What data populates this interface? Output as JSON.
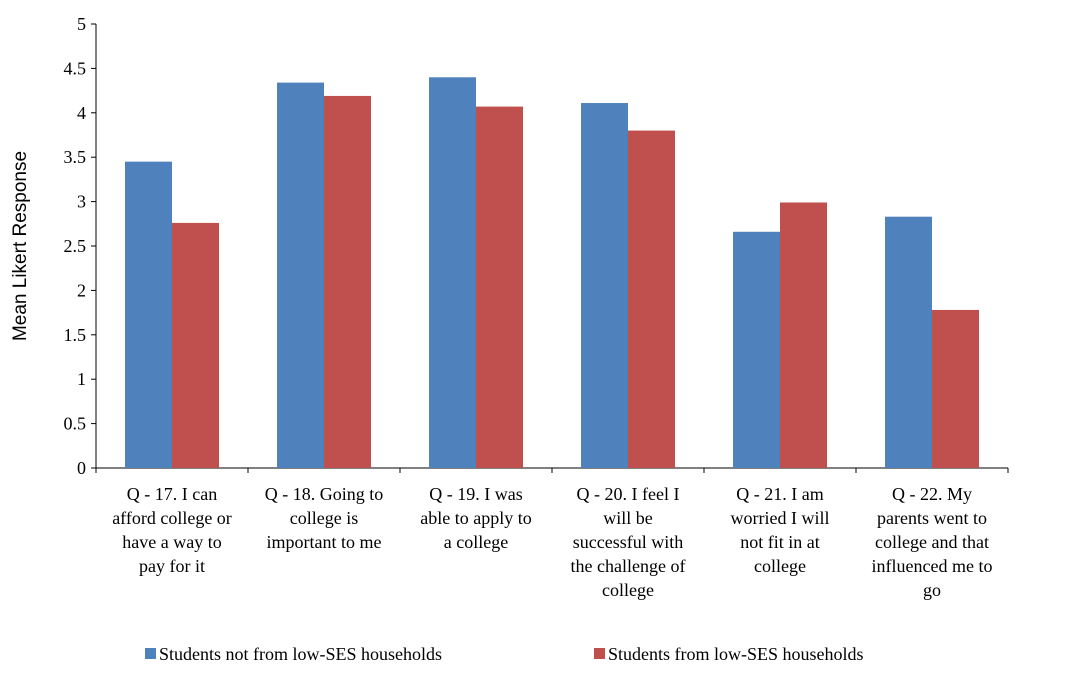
{
  "chart_data": {
    "type": "bar",
    "title": "",
    "xlabel": "",
    "ylabel": "Mean Likert Response",
    "ylim": [
      0,
      5
    ],
    "ytick_step": 0.5,
    "yticks": [
      "0",
      "0.5",
      "1",
      "1.5",
      "2",
      "2.5",
      "3",
      "3.5",
      "4",
      "4.5",
      "5"
    ],
    "grid": false,
    "legend_position": "bottom",
    "categories": [
      [
        "Q - 17. I can",
        "afford college or",
        "have a way to",
        "pay for it"
      ],
      [
        "Q - 18. Going to",
        "college is",
        "important to me"
      ],
      [
        "Q - 19. I was",
        "able to apply to",
        "a college"
      ],
      [
        "Q - 20. I feel I",
        "will be",
        "successful with",
        "the challenge of",
        "college"
      ],
      [
        "Q - 21. I am",
        "worried I will",
        "not fit in at",
        "college"
      ],
      [
        "Q - 22. My",
        "parents went to",
        "college and that",
        "influenced me to",
        "go"
      ]
    ],
    "series": [
      {
        "name": "Students not from low-SES households",
        "color": "#4F81BD",
        "values": [
          3.45,
          4.34,
          4.4,
          4.11,
          2.66,
          2.83
        ]
      },
      {
        "name": "Students from low-SES households",
        "color": "#C0504D",
        "values": [
          2.76,
          4.19,
          4.07,
          3.8,
          2.99,
          1.78
        ]
      }
    ]
  }
}
